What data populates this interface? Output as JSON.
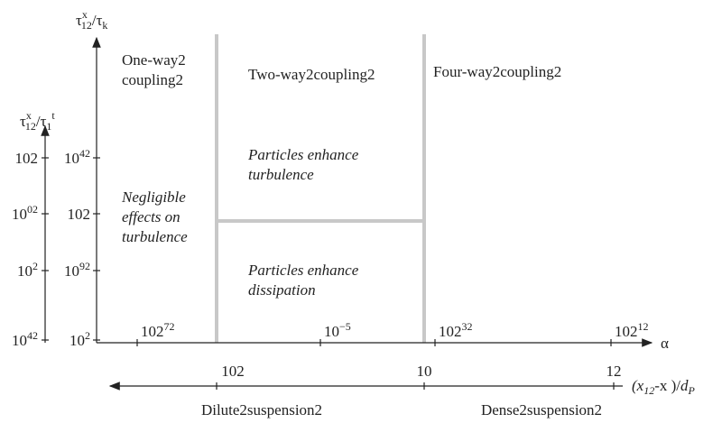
{
  "axis_labels": {
    "top": {
      "main": "τ",
      "sub": "12",
      "sup": "x",
      "slash": "/τ",
      "sub2": "k"
    },
    "left": {
      "main": "τ",
      "sub": "12",
      "sup": "x",
      "slash": "/τ",
      "sub2": "1",
      "sup2": "t"
    },
    "alpha": "α",
    "bottom": {
      "a": "(x",
      "sub": "12",
      "b": "-x )/",
      "c": "d",
      "sub2": "P"
    }
  },
  "regions": [
    {
      "lines": [
        "One-way2",
        "coupling2"
      ],
      "italic": false
    },
    {
      "lines": [
        "Two-way2coupling2"
      ],
      "italic": false
    },
    {
      "lines": [
        "Four-way2coupling2"
      ],
      "italic": false
    },
    {
      "lines": [
        "Particles enhance",
        "turbulence"
      ],
      "italic": true
    },
    {
      "lines": [
        "Negligible",
        "effects on",
        "turbulence"
      ],
      "italic": true
    },
    {
      "lines": [
        "Particles enhance",
        "dissipation"
      ],
      "italic": true
    }
  ],
  "outer_ticks": [
    {
      "base": "102"
    },
    {
      "base": "10",
      "sup": "02"
    },
    {
      "base": "10",
      "sup": "2"
    },
    {
      "base": "10",
      "sup": "42"
    }
  ],
  "inner_ticks": [
    {
      "base": "10",
      "sup": "42"
    },
    {
      "base": "102"
    },
    {
      "base": "10",
      "sup": "92"
    },
    {
      "base": "10",
      "sup": "2"
    }
  ],
  "alpha_ticks": [
    {
      "base": "102",
      "sup": "72"
    },
    {
      "base": "10",
      "sup": "−5"
    },
    {
      "base": "102",
      "sup": "32"
    },
    {
      "base": "102",
      "sup": "12"
    }
  ],
  "bottom_ticks": [
    {
      "base": "102"
    },
    {
      "base": "10"
    },
    {
      "base": "12"
    }
  ],
  "bottom_labels": [
    "Dilute2suspension2",
    "Dense2suspension2"
  ]
}
